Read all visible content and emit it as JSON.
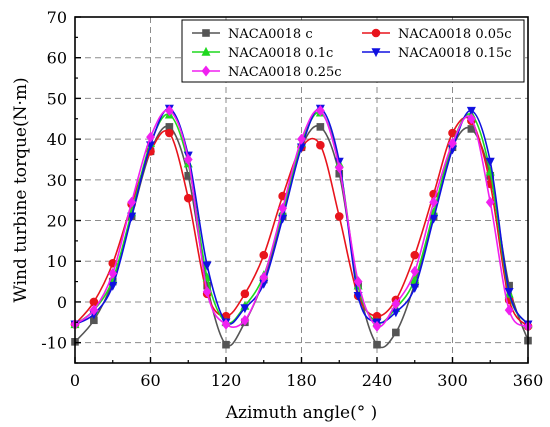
{
  "chart_data": {
    "type": "line",
    "xlabel": "Azimuth angle(° )",
    "ylabel": "Wind turbine torque(N·m)",
    "xlim": [
      0,
      360
    ],
    "ylim": [
      -15,
      70
    ],
    "xticks": [
      0,
      60,
      120,
      180,
      240,
      300,
      360
    ],
    "yticks": [
      -10,
      0,
      10,
      20,
      30,
      40,
      50,
      60,
      70
    ],
    "xtick_labels": [
      "0",
      "60",
      "120",
      "180",
      "240",
      "300",
      "360"
    ],
    "ytick_labels": [
      "-10",
      "0",
      "10",
      "20",
      "30",
      "40",
      "50",
      "60",
      "70"
    ],
    "grid": "dashed",
    "legend_position": "top-right",
    "series": [
      {
        "name": "NACA0018  c",
        "color": "#555555",
        "marker": "square",
        "x": [
          0,
          15,
          30,
          45,
          60,
          75,
          90,
          105,
          120,
          135,
          150,
          165,
          180,
          195,
          210,
          225,
          240,
          255,
          270,
          285,
          300,
          315,
          330,
          345,
          360
        ],
        "y": [
          -9.8,
          -4.5,
          5,
          21,
          37,
          43,
          31,
          4,
          -10.5,
          -5,
          5.5,
          21,
          38,
          43,
          31.5,
          4,
          -10.5,
          -7.5,
          4.5,
          21,
          38,
          42.5,
          31,
          4,
          -9.5
        ]
      },
      {
        "name": "NACA0018  0.05c",
        "color": "#e8141c",
        "marker": "circle",
        "x": [
          0,
          15,
          30,
          45,
          60,
          75,
          90,
          105,
          120,
          135,
          150,
          165,
          180,
          195,
          210,
          225,
          240,
          255,
          270,
          285,
          300,
          315,
          330,
          345,
          360
        ],
        "y": [
          -5.5,
          0,
          9.5,
          24,
          37,
          41.5,
          25.5,
          2,
          -3.5,
          2,
          11.5,
          26,
          38,
          38.5,
          21,
          1.5,
          -3.5,
          0.5,
          11.5,
          26.5,
          41.5,
          44.5,
          29,
          0.5,
          -6
        ]
      },
      {
        "name": "NACA0018  0.1c",
        "color": "#1fd81f",
        "marker": "triangle-up",
        "x": [
          0,
          15,
          30,
          45,
          60,
          75,
          90,
          105,
          120,
          135,
          150,
          165,
          180,
          195,
          210,
          225,
          240,
          255,
          270,
          285,
          300,
          315,
          330,
          345,
          360
        ],
        "y": [
          -5.5,
          -2,
          5.5,
          22,
          39,
          46,
          34,
          6,
          -5,
          -1,
          6.5,
          22,
          39,
          46.5,
          34,
          4,
          -5,
          -1.5,
          5.5,
          22,
          39,
          46,
          32,
          2,
          -5.5
        ]
      },
      {
        "name": "NACA0018  0.15c",
        "color": "#1010e0",
        "marker": "triangle-down",
        "x": [
          0,
          15,
          30,
          45,
          60,
          75,
          90,
          105,
          120,
          135,
          150,
          165,
          180,
          195,
          210,
          225,
          240,
          255,
          270,
          285,
          300,
          315,
          330,
          345,
          360
        ],
        "y": [
          -5.5,
          -3,
          4,
          21,
          38.5,
          47.5,
          36,
          9,
          -5,
          -1.5,
          4.5,
          20.5,
          38,
          47.5,
          34.5,
          1.5,
          -5,
          -2.5,
          3.5,
          20.5,
          37.5,
          47,
          34.5,
          2.5,
          -5.5
        ]
      },
      {
        "name": "NACA0018  0.25c",
        "color": "#f020f0",
        "marker": "diamond",
        "x": [
          0,
          15,
          30,
          45,
          60,
          75,
          90,
          105,
          120,
          135,
          150,
          165,
          180,
          195,
          210,
          225,
          240,
          255,
          270,
          285,
          300,
          315,
          330,
          345,
          360
        ],
        "y": [
          -5.5,
          -2,
          7,
          24.5,
          40.5,
          47,
          35,
          2.5,
          -5.5,
          -4.5,
          6,
          23,
          40,
          47,
          33,
          5,
          -6,
          -0.5,
          7.5,
          24.5,
          39,
          45,
          24.5,
          -2,
          -6
        ]
      }
    ]
  }
}
